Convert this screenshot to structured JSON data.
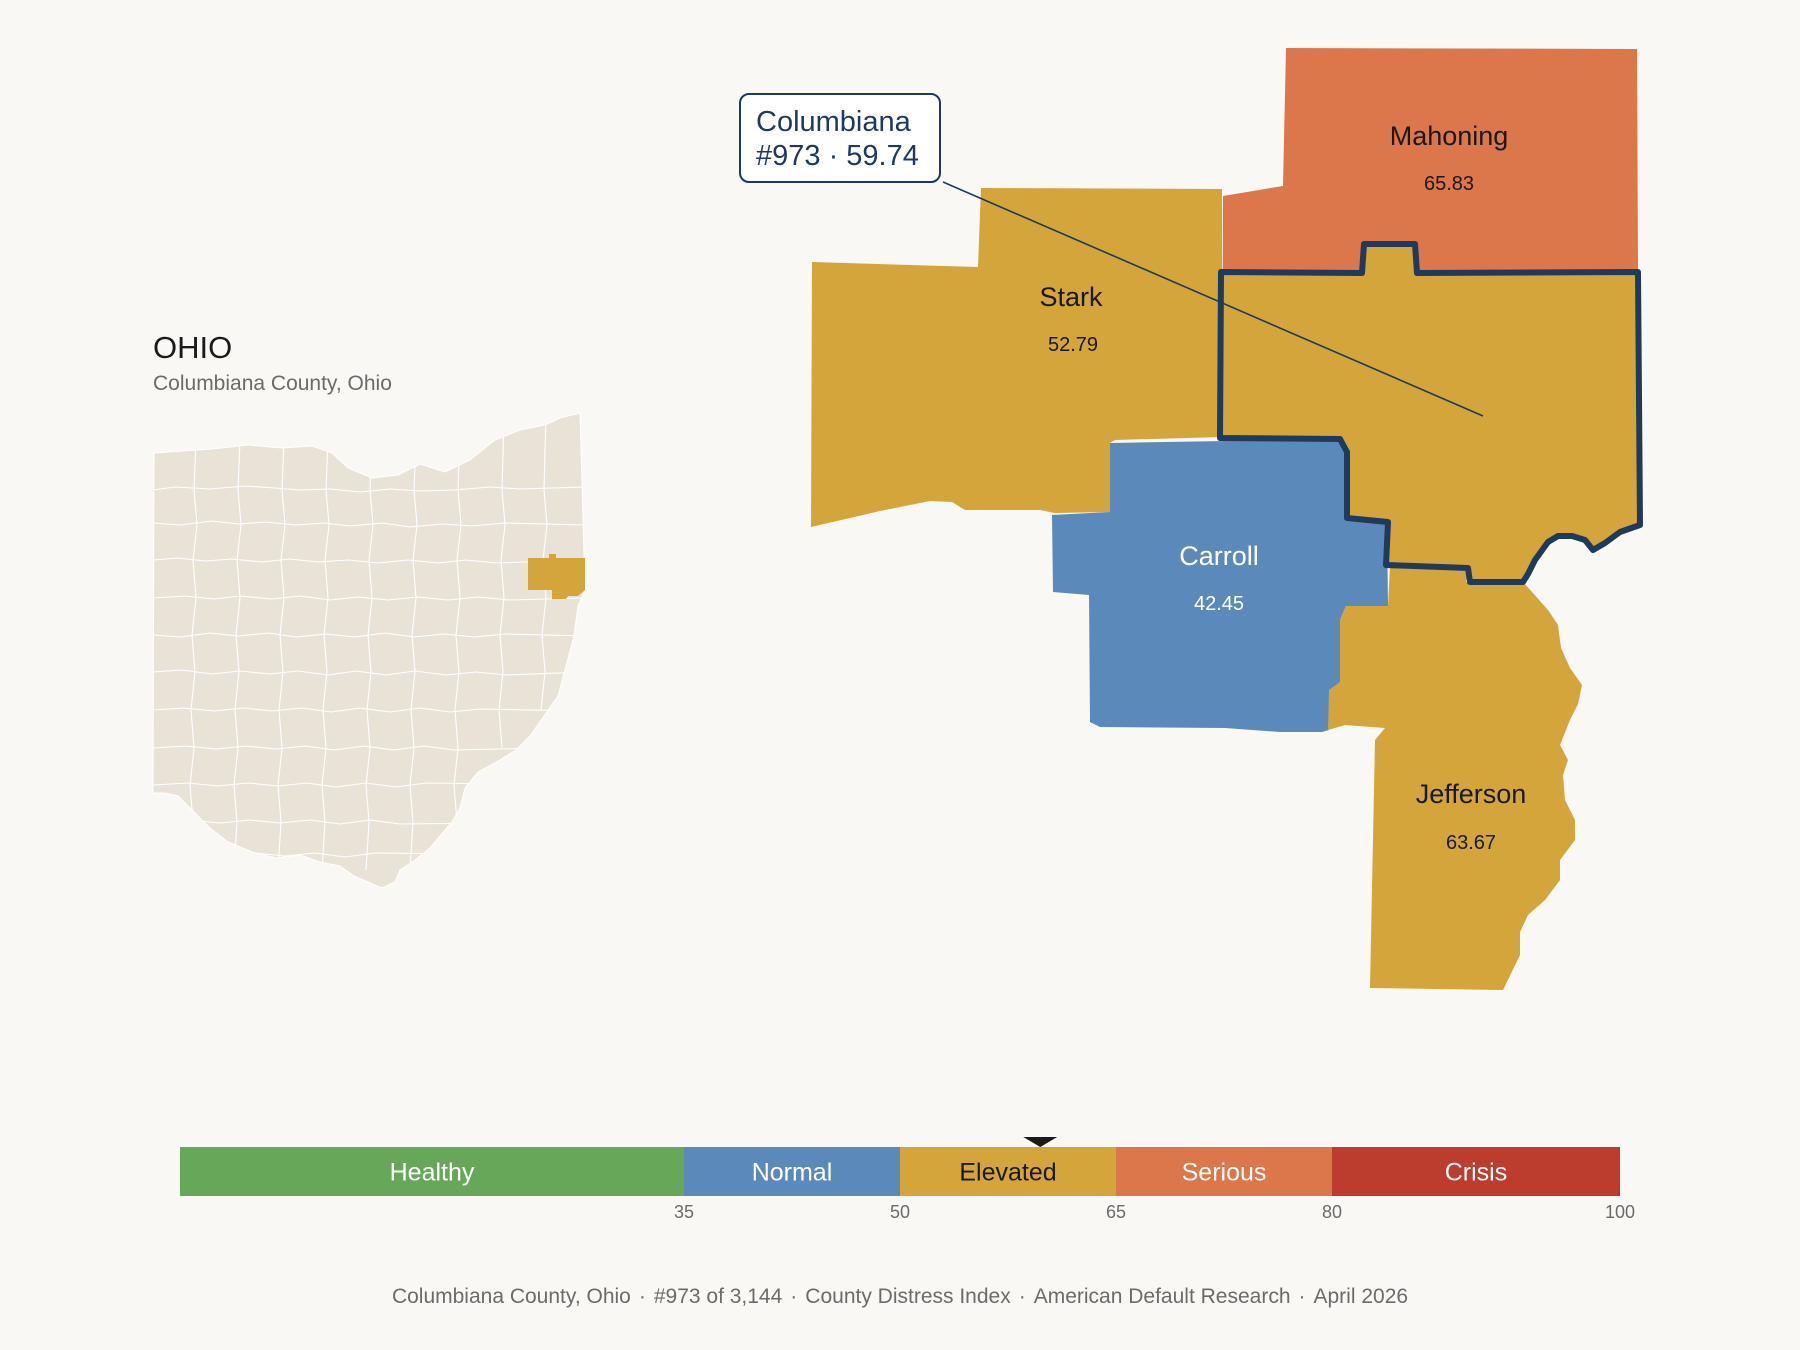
{
  "state": {
    "title": "OHIO",
    "subtitle": "Columbiana County, Ohio"
  },
  "callout": {
    "name": "Columbiana",
    "rank_score": "#973 · 59.74"
  },
  "colors": {
    "healthy": "#67a759",
    "normal": "#5b8aba",
    "elevated": "#d3a53b",
    "serious": "#db774a",
    "crisis": "#bc3d2e",
    "state_fill": "#e9e3d7",
    "highlight_outline": "#1e3a5f"
  },
  "counties": [
    {
      "name": "Mahoning",
      "value": "65.83",
      "category": "serious"
    },
    {
      "name": "Stark",
      "value": "52.79",
      "category": "elevated"
    },
    {
      "name": "Carroll",
      "value": "42.45",
      "category": "normal"
    },
    {
      "name": "Jefferson",
      "value": "63.67",
      "category": "elevated"
    }
  ],
  "selected_county": {
    "name": "Columbiana",
    "value": 59.74,
    "category": "elevated"
  },
  "scale": {
    "min": 0,
    "max": 100,
    "marker_value": 59.74,
    "segments": [
      {
        "label": "Healthy",
        "from": 0,
        "to": 35,
        "color": "#67a759"
      },
      {
        "label": "Normal",
        "from": 35,
        "to": 50,
        "color": "#5b8aba"
      },
      {
        "label": "Elevated",
        "from": 50,
        "to": 65,
        "color": "#d3a53b"
      },
      {
        "label": "Serious",
        "from": 65,
        "to": 80,
        "color": "#db774a"
      },
      {
        "label": "Crisis",
        "from": 80,
        "to": 100,
        "color": "#bc3d2e"
      }
    ],
    "ticks": [
      "35",
      "50",
      "65",
      "80",
      "100"
    ]
  },
  "footer": {
    "county": "Columbiana County, Ohio",
    "rank": "#973 of 3,144",
    "index": "County Distress Index",
    "source": "American Default Research",
    "date": "April 2026"
  }
}
